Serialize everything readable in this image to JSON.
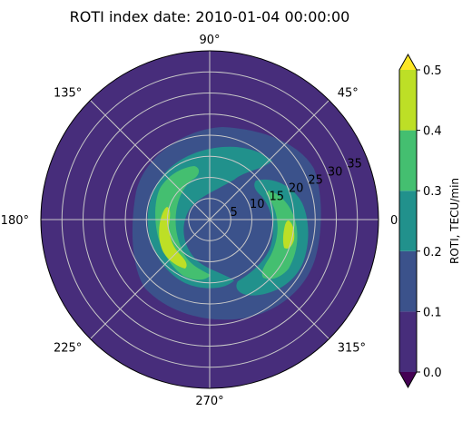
{
  "chart_data": {
    "type": "heatmap",
    "projection": "polar",
    "title": "ROTI index date: 2010-01-04 00:00:00",
    "angle_ticks_deg": [
      0,
      45,
      90,
      135,
      180,
      225,
      270,
      315
    ],
    "angle_tick_labels": [
      "0°",
      "45°",
      "90°",
      "135°",
      "180°",
      "225°",
      "270°",
      "315°"
    ],
    "radial_range": [
      0,
      40
    ],
    "radial_ticks": [
      5,
      10,
      15,
      20,
      25,
      30,
      35
    ],
    "radial_tick_labels": [
      "5",
      "10",
      "15",
      "20",
      "25",
      "30",
      "35"
    ],
    "grid": true,
    "colorbar": {
      "label": "ROTI, TECU/min",
      "levels": [
        0.0,
        0.1,
        0.2,
        0.3,
        0.4,
        0.5
      ],
      "tick_labels": [
        "0.0",
        "0.1",
        "0.2",
        "0.3",
        "0.4",
        "0.5"
      ],
      "extend": "both",
      "colors": [
        "#472d7b",
        "#3b528b",
        "#21918c",
        "#44bf70",
        "#bddf26"
      ],
      "under_color": "#440154",
      "over_color": "#fde725",
      "position": "right"
    },
    "field_description_levels": [
      {
        "min_r": 0,
        "max_r": 40,
        "value_range": [
          0.0,
          0.1
        ]
      },
      {
        "min_r": 0,
        "max_r": 22,
        "value_range": [
          0.1,
          0.2
        ]
      },
      {
        "min_r": 8,
        "max_r": 18,
        "value_range": [
          0.2,
          0.3
        ]
      },
      {
        "min_r": 10,
        "max_r": 15,
        "value_range": [
          0.3,
          0.4
        ]
      },
      {
        "min_r": 11,
        "max_r": 14,
        "value_range": [
          0.4,
          0.5
        ]
      }
    ]
  }
}
